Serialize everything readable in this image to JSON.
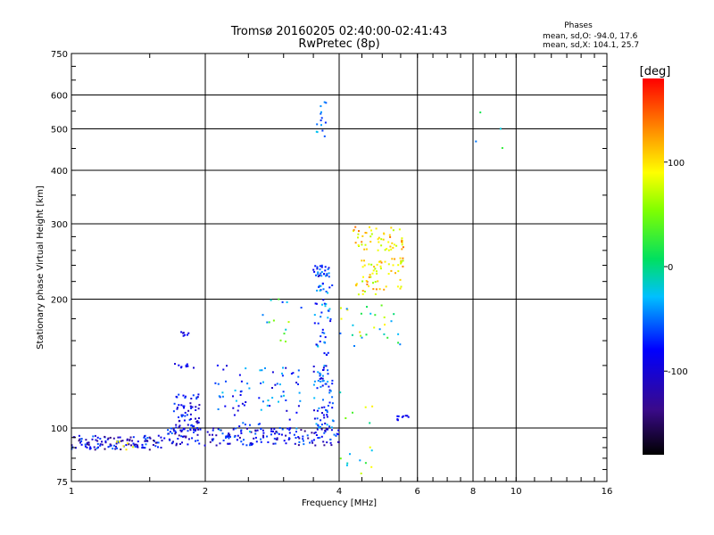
{
  "chart_data": {
    "type": "scatter",
    "title": "Tromsø 20160205 02:40:00-02:41:43",
    "subtitle": "RwPretec (8p)",
    "xlabel": "Frequency [MHz]",
    "ylabel": "Stationary phase Virtual Height [km]",
    "xscale": "log",
    "yscale": "log",
    "xlim": [
      1,
      16
    ],
    "ylim": [
      75,
      750
    ],
    "xticks": [
      1,
      2,
      4,
      6,
      8,
      10,
      16
    ],
    "xtick_labels": [
      "1",
      "2",
      "4",
      "6",
      "8",
      "10",
      "16"
    ],
    "yticks": [
      75,
      100,
      200,
      300,
      400,
      500,
      600,
      750
    ],
    "ytick_labels": [
      "75",
      "100",
      "200",
      "300",
      "400",
      "500",
      "600",
      "750"
    ],
    "grid": true,
    "stats": {
      "heading": "Phases",
      "line1": "mean, sd,O: -94.0, 17.6",
      "line2": "mean, sd,X: 104.1, 25.7"
    },
    "colorbar": {
      "label": "[deg]",
      "ticks": [
        100,
        0,
        -100
      ],
      "tick_labels": [
        "100",
        "0",
        "-100"
      ],
      "range": [
        -180,
        180
      ]
    },
    "clusters": [
      {
        "f0": 1.0,
        "f1": 1.6,
        "h0": 89,
        "h1": 96,
        "n": 120,
        "p0": -150,
        "p1": -70
      },
      {
        "f0": 1.6,
        "f1": 4.0,
        "h0": 91,
        "h1": 100,
        "n": 190,
        "p0": -140,
        "p1": -70
      },
      {
        "f0": 1.25,
        "f1": 1.4,
        "h0": 89,
        "h1": 93,
        "n": 6,
        "p0": 90,
        "p1": 110
      },
      {
        "f0": 1.7,
        "f1": 1.95,
        "h0": 98,
        "h1": 120,
        "n": 70,
        "p0": -130,
        "p1": -80
      },
      {
        "f0": 1.7,
        "f1": 1.9,
        "h0": 138,
        "h1": 142,
        "n": 9,
        "p0": -120,
        "p1": -90
      },
      {
        "f0": 1.7,
        "f1": 1.85,
        "h0": 162,
        "h1": 168,
        "n": 7,
        "p0": -120,
        "p1": -90
      },
      {
        "f0": 2.1,
        "f1": 3.3,
        "h0": 98,
        "h1": 140,
        "n": 80,
        "p0": -120,
        "p1": -40
      },
      {
        "f0": 2.6,
        "f1": 3.5,
        "h0": 150,
        "h1": 200,
        "n": 14,
        "p0": -90,
        "p1": 110
      },
      {
        "f0": 3.5,
        "f1": 3.9,
        "h0": 100,
        "h1": 140,
        "n": 70,
        "p0": -120,
        "p1": -50
      },
      {
        "f0": 3.5,
        "f1": 3.85,
        "h0": 148,
        "h1": 200,
        "n": 35,
        "p0": -110,
        "p1": -40
      },
      {
        "f0": 3.5,
        "f1": 3.8,
        "h0": 225,
        "h1": 240,
        "n": 28,
        "p0": -120,
        "p1": -60
      },
      {
        "f0": 3.5,
        "f1": 3.9,
        "h0": 205,
        "h1": 218,
        "n": 14,
        "p0": -100,
        "p1": -40
      },
      {
        "f0": 3.55,
        "f1": 3.75,
        "h0": 480,
        "h1": 580,
        "n": 14,
        "p0": -90,
        "p1": -40
      },
      {
        "f0": 4.3,
        "f1": 5.6,
        "h0": 260,
        "h1": 295,
        "n": 55,
        "p0": 70,
        "p1": 150
      },
      {
        "f0": 4.3,
        "f1": 5.6,
        "h0": 205,
        "h1": 250,
        "n": 65,
        "p0": 60,
        "p1": 150
      },
      {
        "f0": 4.0,
        "f1": 5.5,
        "h0": 155,
        "h1": 195,
        "n": 28,
        "p0": -80,
        "p1": 120
      },
      {
        "f0": 4.0,
        "f1": 4.8,
        "h0": 78,
        "h1": 125,
        "n": 16,
        "p0": -60,
        "p1": 110
      },
      {
        "f0": 5.4,
        "f1": 5.75,
        "h0": 104,
        "h1": 107,
        "n": 10,
        "p0": -110,
        "p1": -90
      },
      {
        "f0": 8.1,
        "f1": 9.4,
        "h0": 430,
        "h1": 550,
        "n": 4,
        "p0": -70,
        "p1": 60
      }
    ]
  }
}
